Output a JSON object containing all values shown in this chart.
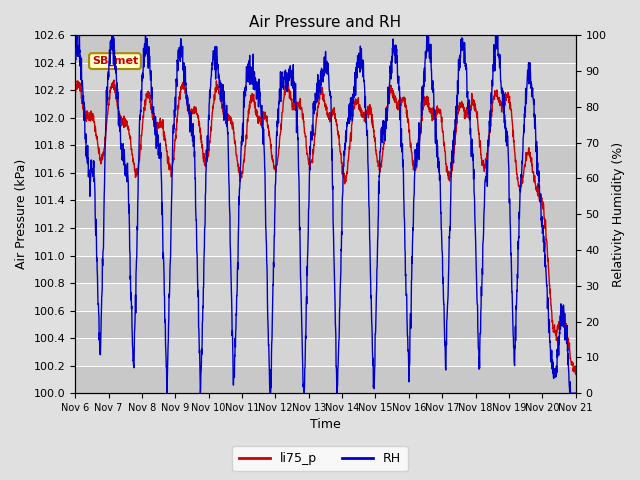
{
  "title": "Air Pressure and RH",
  "xlabel": "Time",
  "ylabel_left": "Air Pressure (kPa)",
  "ylabel_right": "Relativity Humidity (%)",
  "ylim_left": [
    100.0,
    102.6
  ],
  "ylim_right": [
    0,
    100
  ],
  "yticks_left": [
    100.0,
    100.2,
    100.4,
    100.6,
    100.8,
    101.0,
    101.2,
    101.4,
    101.6,
    101.8,
    102.0,
    102.2,
    102.4,
    102.6
  ],
  "yticks_right": [
    0,
    10,
    20,
    30,
    40,
    50,
    60,
    70,
    80,
    90,
    100
  ],
  "xtick_labels": [
    "Nov 6",
    "Nov 7",
    "Nov 8",
    "Nov 9",
    "Nov 10",
    "Nov 11",
    "Nov 12",
    "Nov 13",
    "Nov 14",
    "Nov 15",
    "Nov 16",
    "Nov 17",
    "Nov 18",
    "Nov 19",
    "Nov 20",
    "Nov 21"
  ],
  "color_pressure": "#cc0000",
  "color_rh": "#0000cc",
  "legend_label_pressure": "li75_p",
  "legend_label_rh": "RH",
  "annotation_text": "SB_met",
  "annotation_bg": "#ffffcc",
  "annotation_border": "#aa8800",
  "band_colors": [
    "#c8c8c8",
    "#d8d8d8"
  ]
}
